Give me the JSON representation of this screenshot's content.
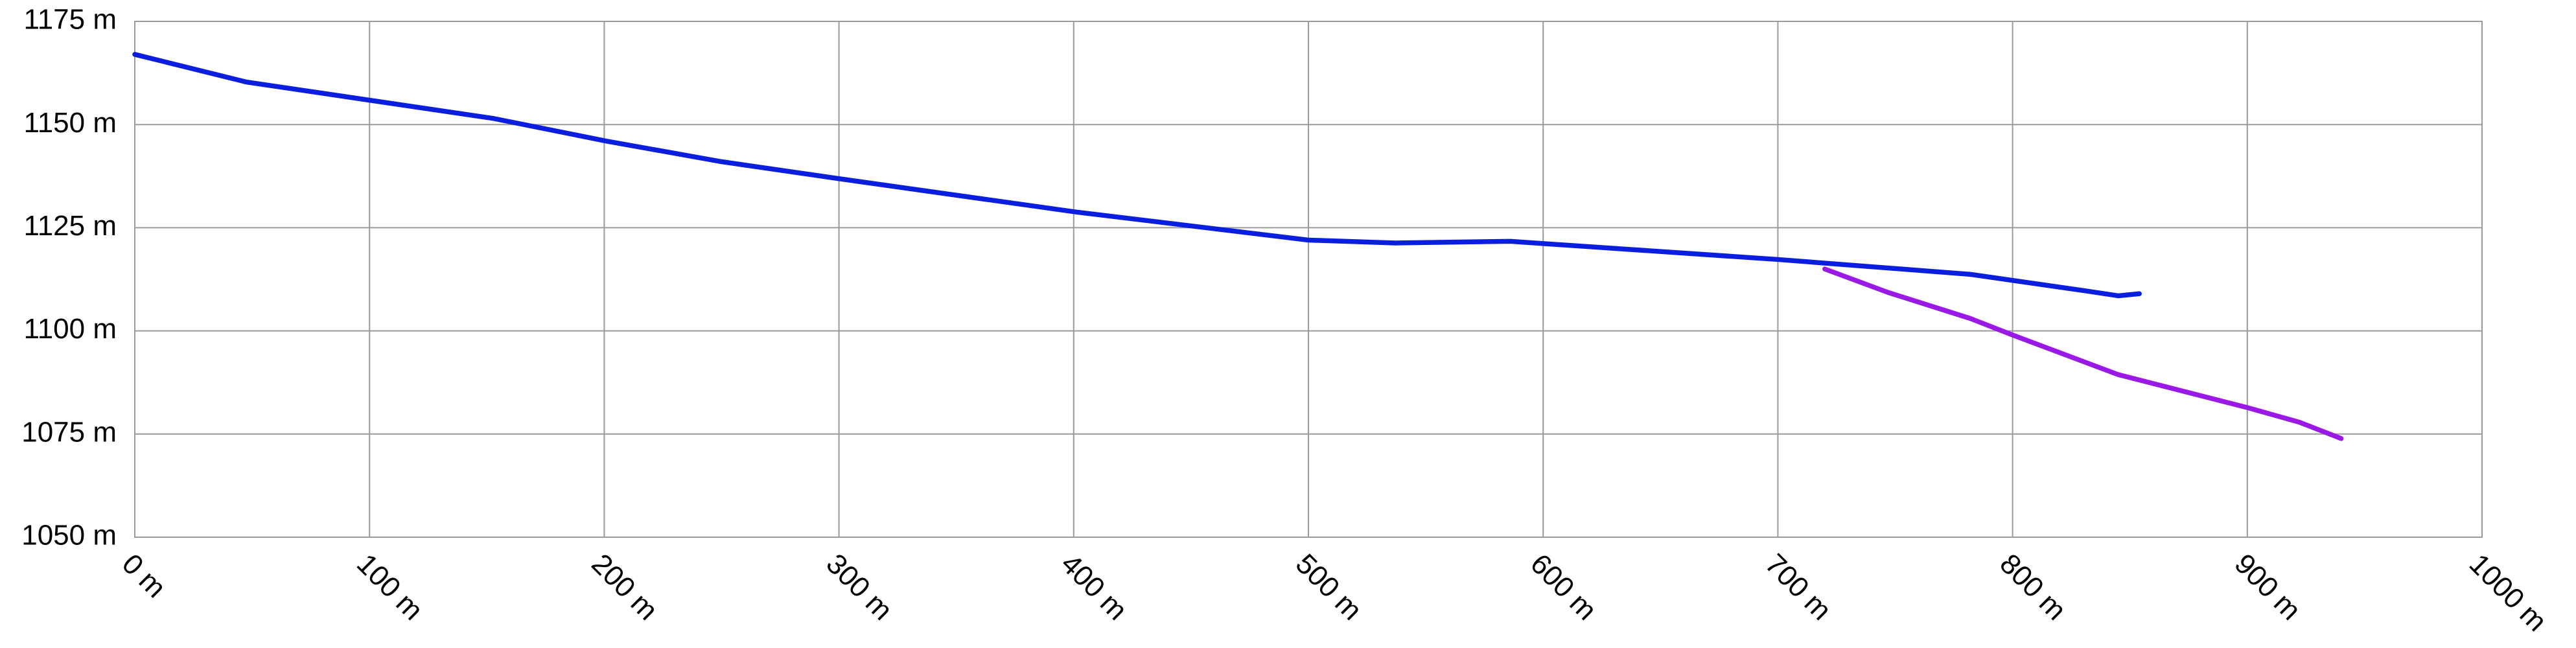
{
  "chart_data": {
    "type": "line",
    "series": [
      {
        "color": "#0a1ee0",
        "x": [
          0,
          47.6,
          100,
          152.6,
          200.8,
          250,
          301,
          401,
          500,
          537,
          586,
          700,
          782,
          831,
          845,
          854
        ],
        "values": [
          1167,
          1160.3,
          1155.9,
          1151.5,
          1146,
          1141,
          1136.8,
          1128.8,
          1122,
          1121.3,
          1121.7,
          1117.3,
          1113.7,
          1109.7,
          1108.5,
          1109
        ]
      },
      {
        "color": "#9b19e6",
        "x": [
          720,
          747,
          782,
          800,
          845,
          900,
          922,
          940
        ],
        "values": [
          1115,
          1109.3,
          1103,
          1099,
          1089.4,
          1081.4,
          1077.9,
          1073.9
        ]
      }
    ],
    "xlim": [
      0,
      1000
    ],
    "ylim": [
      1050,
      1175
    ],
    "xticks": [
      {
        "value": 0,
        "label": "0 m"
      },
      {
        "value": 100,
        "label": "100 m"
      },
      {
        "value": 200,
        "label": "200 m"
      },
      {
        "value": 300,
        "label": "300 m"
      },
      {
        "value": 400,
        "label": "400 m"
      },
      {
        "value": 500,
        "label": "500 m"
      },
      {
        "value": 600,
        "label": "600 m"
      },
      {
        "value": 700,
        "label": "700 m"
      },
      {
        "value": 800,
        "label": "800 m"
      },
      {
        "value": 900,
        "label": "900 m"
      },
      {
        "value": 1000,
        "label": "1000 m"
      }
    ],
    "yticks": [
      {
        "value": 1050,
        "label": "1050 m"
      },
      {
        "value": 1075,
        "label": "1075 m"
      },
      {
        "value": 1100,
        "label": "1100 m"
      },
      {
        "value": 1125,
        "label": "1125 m"
      },
      {
        "value": 1150,
        "label": "1150 m"
      },
      {
        "value": 1175,
        "label": "1175 m"
      }
    ],
    "grid": true
  }
}
